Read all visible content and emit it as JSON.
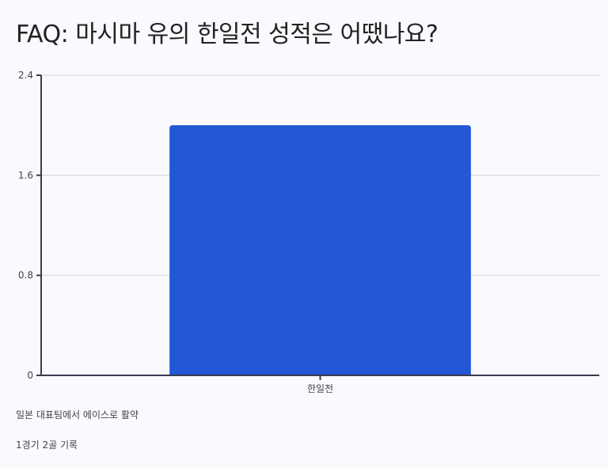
{
  "title": "FAQ: 마시마 유의 한일전 성적은 어땠나요?",
  "chart_data": {
    "type": "bar",
    "categories": [
      "한일전"
    ],
    "values": [
      2
    ],
    "ylim": [
      0,
      2.4
    ],
    "yticks": [
      "0",
      "0.8",
      "1.6",
      "2.4"
    ],
    "grid": true,
    "bar_color": "#2257d6"
  },
  "notes": [
    "일본 대표팀에서 에이스로 활약",
    "1경기 2골 기록"
  ]
}
